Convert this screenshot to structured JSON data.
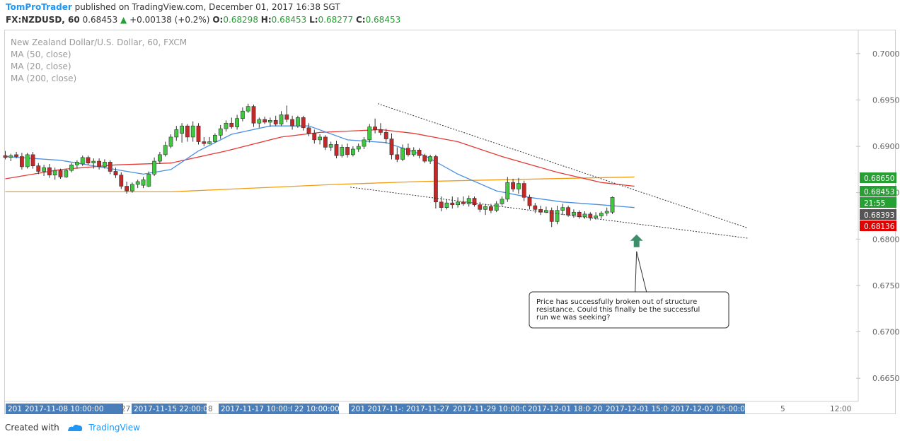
{
  "header": {
    "author": "TomProTrader",
    "published_text": "published on TradingView.com, December 01, 2017 16:38 SGT"
  },
  "quote": {
    "symbol_line": "FX:NZDUSD, 60",
    "last": "0.68453",
    "change": "+0.00138 (+0.2%)",
    "open_label": "O:",
    "open": "0.68298",
    "high_label": "H:",
    "high": "0.68453",
    "low_label": "L:",
    "low": "0.68277",
    "close_label": "C:",
    "close": "0.68453",
    "up_color": "#26a033"
  },
  "legend": {
    "title": "New Zealand Dollar/U.S. Dollar, 60, FXCM",
    "ma50": "MA (50, close)",
    "ma20": "MA (20, close)",
    "ma200": "MA (200, close)"
  },
  "footer": {
    "created_with": "Created with",
    "brand": "TradingView"
  },
  "chart_data": {
    "type": "candlestick",
    "title": "",
    "ylim": [
      0.6625,
      0.7025
    ],
    "y_ticks": [
      "0.70000",
      "0.69500",
      "0.69000",
      "0.68500",
      "0.68000",
      "0.67500",
      "0.67000",
      "0.66500"
    ],
    "y_tick_values": [
      0.7,
      0.695,
      0.69,
      0.685,
      0.68,
      0.675,
      0.67,
      0.665
    ],
    "x_labels": [
      {
        "text": "201",
        "bar": 0,
        "highlight": true
      },
      {
        "text": "2017-11-08 10:00:00",
        "bar": 4,
        "highlight": true
      },
      {
        "text": "27",
        "bar": 20,
        "highlight": false
      },
      {
        "text": "2017-11-15 22:00:00",
        "bar": 26,
        "highlight": true
      },
      {
        "text": "8",
        "bar": 38,
        "highlight": false
      },
      {
        "text": "2017-11-17 10:00:00",
        "bar": 40,
        "highlight": true
      },
      {
        "text": "22 10:00:00",
        "bar": 54,
        "highlight": true
      },
      {
        "text": "201 2017-11-:",
        "bar": 63,
        "highlight": true
      },
      {
        "text": "2017-11-27 1",
        "bar": 73,
        "highlight": true
      },
      {
        "text": "2017-11-29 10:00:00",
        "bar": 81,
        "highlight": true
      },
      {
        "text": "2017-12-01 18:00:00",
        "bar": 95,
        "highlight": true
      },
      {
        "text": "20",
        "bar": 108,
        "highlight": true
      },
      {
        "text": "2017-12-01 15:00:",
        "bar": 111,
        "highlight": true
      },
      {
        "text": "2017-12-02 05:00:00",
        "bar": 122,
        "highlight": true
      },
      {
        "text": "5",
        "bar": 143,
        "highlight": false
      },
      {
        "text": "12:00",
        "bar": 155,
        "highlight": false
      }
    ],
    "price_labels": [
      {
        "text": "0.68650",
        "value": 0.6865,
        "color": "#26a033"
      },
      {
        "text": "0.68453",
        "value": 0.68453,
        "color": "#26a033"
      },
      {
        "text": "21:55",
        "value": 0.6829,
        "color": "#26a033"
      },
      {
        "text": "0.68393",
        "value": 0.68393,
        "color": "#555555"
      },
      {
        "text": "0.68136",
        "value": 0.68136,
        "color": "#e00000"
      }
    ],
    "candles": [
      [
        0.689,
        0.6895,
        0.6886,
        0.6888
      ],
      [
        0.6888,
        0.6892,
        0.6884,
        0.689
      ],
      [
        0.6891,
        0.6894,
        0.6887,
        0.6889
      ],
      [
        0.6889,
        0.6893,
        0.6875,
        0.6878
      ],
      [
        0.6878,
        0.6893,
        0.6876,
        0.6891
      ],
      [
        0.6891,
        0.6894,
        0.6876,
        0.6879
      ],
      [
        0.6879,
        0.6882,
        0.687,
        0.6873
      ],
      [
        0.6873,
        0.688,
        0.6868,
        0.6877
      ],
      [
        0.6877,
        0.6881,
        0.6866,
        0.6869
      ],
      [
        0.6869,
        0.6877,
        0.6864,
        0.6874
      ],
      [
        0.6874,
        0.6876,
        0.6865,
        0.6867
      ],
      [
        0.6867,
        0.6876,
        0.6866,
        0.6874
      ],
      [
        0.6874,
        0.6882,
        0.6872,
        0.688
      ],
      [
        0.688,
        0.6885,
        0.6876,
        0.6883
      ],
      [
        0.6881,
        0.689,
        0.6879,
        0.6888
      ],
      [
        0.6888,
        0.689,
        0.688,
        0.6882
      ],
      [
        0.6882,
        0.6887,
        0.6876,
        0.6884
      ],
      [
        0.6884,
        0.6887,
        0.6875,
        0.6878
      ],
      [
        0.6878,
        0.6886,
        0.6876,
        0.6883
      ],
      [
        0.6883,
        0.6885,
        0.687,
        0.6873
      ],
      [
        0.6873,
        0.6877,
        0.6866,
        0.6869
      ],
      [
        0.6869,
        0.6872,
        0.6854,
        0.6857
      ],
      [
        0.6857,
        0.6862,
        0.6849,
        0.6852
      ],
      [
        0.6852,
        0.6861,
        0.685,
        0.6859
      ],
      [
        0.6859,
        0.6864,
        0.6855,
        0.6862
      ],
      [
        0.6858,
        0.6867,
        0.6855,
        0.6864
      ],
      [
        0.6857,
        0.6873,
        0.6856,
        0.687
      ],
      [
        0.687,
        0.6888,
        0.6868,
        0.6884
      ],
      [
        0.6884,
        0.6894,
        0.6881,
        0.6891
      ],
      [
        0.6891,
        0.6905,
        0.6889,
        0.6901
      ],
      [
        0.69,
        0.6913,
        0.6898,
        0.691
      ],
      [
        0.691,
        0.6922,
        0.6906,
        0.6918
      ],
      [
        0.6914,
        0.6925,
        0.6904,
        0.6922
      ],
      [
        0.6922,
        0.6924,
        0.6905,
        0.691
      ],
      [
        0.691,
        0.6927,
        0.6905,
        0.6922
      ],
      [
        0.6922,
        0.6925,
        0.6902,
        0.6905
      ],
      [
        0.6905,
        0.691,
        0.69,
        0.6903
      ],
      [
        0.6903,
        0.691,
        0.6902,
        0.6905
      ],
      [
        0.6905,
        0.6914,
        0.6904,
        0.6912
      ],
      [
        0.6912,
        0.6923,
        0.6908,
        0.6919
      ],
      [
        0.6919,
        0.6928,
        0.6916,
        0.6925
      ],
      [
        0.6925,
        0.6931,
        0.6919,
        0.6921
      ],
      [
        0.6921,
        0.6934,
        0.6918,
        0.693
      ],
      [
        0.693,
        0.6942,
        0.6927,
        0.6938
      ],
      [
        0.6938,
        0.6946,
        0.6936,
        0.6943
      ],
      [
        0.6943,
        0.6945,
        0.6921,
        0.6925
      ],
      [
        0.6925,
        0.6931,
        0.692,
        0.6929
      ],
      [
        0.6929,
        0.6932,
        0.6924,
        0.6926
      ],
      [
        0.6926,
        0.6931,
        0.6921,
        0.6928
      ],
      [
        0.6928,
        0.6933,
        0.6922,
        0.6924
      ],
      [
        0.6924,
        0.6938,
        0.6922,
        0.6934
      ],
      [
        0.6934,
        0.6944,
        0.6926,
        0.6929
      ],
      [
        0.6929,
        0.6933,
        0.6918,
        0.6922
      ],
      [
        0.6922,
        0.6933,
        0.692,
        0.6931
      ],
      [
        0.6931,
        0.6933,
        0.6917,
        0.692
      ],
      [
        0.692,
        0.6925,
        0.6911,
        0.6914
      ],
      [
        0.6914,
        0.6918,
        0.6903,
        0.6907
      ],
      [
        0.6907,
        0.6913,
        0.6902,
        0.691
      ],
      [
        0.691,
        0.6912,
        0.6896,
        0.6899
      ],
      [
        0.6899,
        0.6905,
        0.6895,
        0.6902
      ],
      [
        0.6902,
        0.6906,
        0.6887,
        0.689
      ],
      [
        0.689,
        0.6902,
        0.6888,
        0.6899
      ],
      [
        0.6899,
        0.6903,
        0.6888,
        0.6891
      ],
      [
        0.6891,
        0.69,
        0.6889,
        0.6897
      ],
      [
        0.6897,
        0.6903,
        0.6894,
        0.69
      ],
      [
        0.69,
        0.691,
        0.6897,
        0.6907
      ],
      [
        0.6907,
        0.6924,
        0.6904,
        0.6921
      ],
      [
        0.6921,
        0.693,
        0.6914,
        0.6918
      ],
      [
        0.6918,
        0.6925,
        0.6912,
        0.6915
      ],
      [
        0.6915,
        0.6919,
        0.6903,
        0.6908
      ],
      [
        0.6908,
        0.6914,
        0.6886,
        0.6891
      ],
      [
        0.6891,
        0.6899,
        0.6883,
        0.6886
      ],
      [
        0.6886,
        0.6902,
        0.6884,
        0.6898
      ],
      [
        0.6898,
        0.6903,
        0.6889,
        0.6891
      ],
      [
        0.6891,
        0.6899,
        0.6889,
        0.6896
      ],
      [
        0.6896,
        0.6898,
        0.6887,
        0.689
      ],
      [
        0.689,
        0.6892,
        0.6882,
        0.6884
      ],
      [
        0.6884,
        0.6891,
        0.6881,
        0.6889
      ],
      [
        0.6889,
        0.6891,
        0.6833,
        0.684
      ],
      [
        0.684,
        0.6846,
        0.683,
        0.6834
      ],
      [
        0.6834,
        0.6843,
        0.6832,
        0.6839
      ],
      [
        0.6839,
        0.6846,
        0.6833,
        0.6837
      ],
      [
        0.6837,
        0.6845,
        0.6834,
        0.684
      ],
      [
        0.684,
        0.6846,
        0.6836,
        0.6838
      ],
      [
        0.6838,
        0.6847,
        0.6835,
        0.6844
      ],
      [
        0.6844,
        0.6846,
        0.6835,
        0.6837
      ],
      [
        0.6837,
        0.684,
        0.6829,
        0.6832
      ],
      [
        0.6832,
        0.6838,
        0.6826,
        0.6835
      ],
      [
        0.6835,
        0.6838,
        0.6828,
        0.6831
      ],
      [
        0.6831,
        0.6841,
        0.6829,
        0.6838
      ],
      [
        0.6838,
        0.6846,
        0.6836,
        0.6843
      ],
      [
        0.6843,
        0.6867,
        0.684,
        0.6861
      ],
      [
        0.6861,
        0.6865,
        0.6851,
        0.6854
      ],
      [
        0.6854,
        0.6866,
        0.6849,
        0.686
      ],
      [
        0.686,
        0.6863,
        0.6841,
        0.6845
      ],
      [
        0.6845,
        0.6848,
        0.6832,
        0.6836
      ],
      [
        0.6836,
        0.6839,
        0.6828,
        0.6832
      ],
      [
        0.6832,
        0.6836,
        0.6826,
        0.6829
      ],
      [
        0.6829,
        0.6835,
        0.6828,
        0.6831
      ],
      [
        0.6831,
        0.6834,
        0.6813,
        0.6819
      ],
      [
        0.6819,
        0.6836,
        0.6816,
        0.6831
      ],
      [
        0.6831,
        0.6838,
        0.6826,
        0.6834
      ],
      [
        0.6834,
        0.6836,
        0.6824,
        0.6826
      ],
      [
        0.6826,
        0.6832,
        0.6823,
        0.6829
      ],
      [
        0.6829,
        0.6831,
        0.6822,
        0.6824
      ],
      [
        0.6824,
        0.683,
        0.6822,
        0.6827
      ],
      [
        0.6827,
        0.6829,
        0.682,
        0.6823
      ],
      [
        0.6823,
        0.6829,
        0.6821,
        0.6825
      ],
      [
        0.6825,
        0.683,
        0.6822,
        0.6828
      ],
      [
        0.6828,
        0.6834,
        0.6825,
        0.683
      ],
      [
        0.6829,
        0.6846,
        0.6827,
        0.6845
      ]
    ],
    "ma20_anchors": [
      [
        0,
        0.6889
      ],
      [
        10,
        0.6885
      ],
      [
        20,
        0.6875
      ],
      [
        25,
        0.687
      ],
      [
        30,
        0.6875
      ],
      [
        35,
        0.6895
      ],
      [
        41,
        0.6913
      ],
      [
        48,
        0.6922
      ],
      [
        55,
        0.6922
      ],
      [
        62,
        0.6907
      ],
      [
        69,
        0.6904
      ],
      [
        76,
        0.689
      ],
      [
        82,
        0.687
      ],
      [
        89,
        0.6852
      ],
      [
        95,
        0.6845
      ],
      [
        101,
        0.684
      ],
      [
        108,
        0.6837
      ],
      [
        114,
        0.6834
      ]
    ],
    "ma50_anchors": [
      [
        0,
        0.6865
      ],
      [
        10,
        0.6875
      ],
      [
        20,
        0.688
      ],
      [
        30,
        0.6882
      ],
      [
        40,
        0.6895
      ],
      [
        50,
        0.691
      ],
      [
        57,
        0.6915
      ],
      [
        68,
        0.6918
      ],
      [
        74,
        0.6914
      ],
      [
        82,
        0.6905
      ],
      [
        90,
        0.6889
      ],
      [
        100,
        0.6872
      ],
      [
        108,
        0.6861
      ],
      [
        114,
        0.6857
      ]
    ],
    "ma200_anchors": [
      [
        0,
        0.6851
      ],
      [
        30,
        0.6851
      ],
      [
        45,
        0.6855
      ],
      [
        60,
        0.6859
      ],
      [
        75,
        0.6862
      ],
      [
        90,
        0.6864
      ],
      [
        114,
        0.6867
      ]
    ],
    "trendlines": [
      {
        "from": [
          67.5,
          0.6946
        ],
        "to": [
          134.5,
          0.6812
        ]
      },
      {
        "from": [
          62.5,
          0.6856
        ],
        "to": [
          134.5,
          0.6801
        ]
      }
    ],
    "annotation": {
      "text_lines": [
        "Price has successfully broken out of structure",
        "resistance. Could this finally be the successful",
        "run we was seeking?"
      ],
      "arrow_bar": 114,
      "arrow_price": 0.6805,
      "arrow_color": "#3d8f6b"
    },
    "colors": {
      "up": "#3ec93e",
      "down": "#c62828",
      "ma20": "#4a90e2",
      "ma50": "#e53935",
      "ma200": "#f39c12",
      "axis_text": "#666666",
      "x_label_bg": "#4a7ebb"
    }
  }
}
